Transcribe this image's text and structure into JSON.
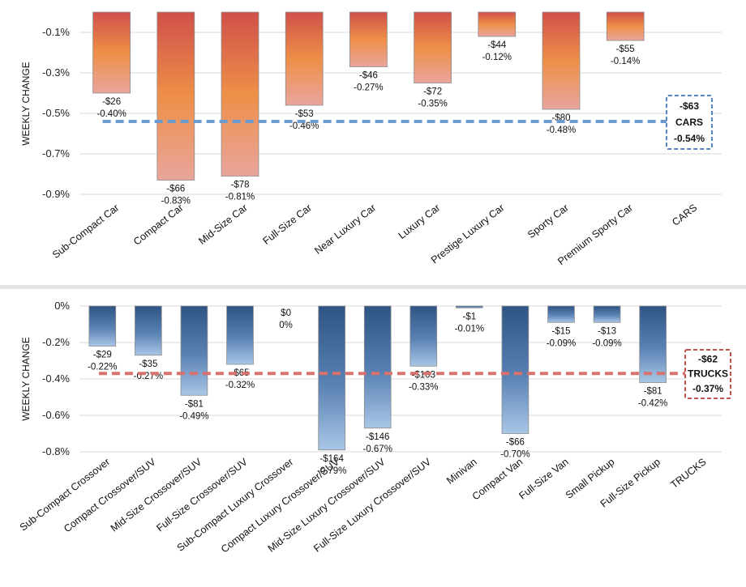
{
  "chart_data": [
    {
      "type": "bar",
      "ylabel": "WEEKLY CHANGE",
      "ylim": [
        -0.009,
        0.0
      ],
      "yticks": [
        "-0.1%",
        "-0.3%",
        "-0.5%",
        "-0.7%",
        "-0.9%"
      ],
      "ytick_values": [
        -0.001,
        -0.003,
        -0.005,
        -0.007,
        -0.009
      ],
      "categories": [
        "Sub-Compact Car",
        "Compact Car",
        "Mid-Size Car",
        "Full-Size Car",
        "Near Luxury Car",
        "Luxury Car",
        "Prestige Luxury Car",
        "Sporty Car",
        "Premium Sporty Car",
        "CARS"
      ],
      "values": [
        -0.004,
        -0.0083,
        -0.0081,
        -0.0046,
        -0.0027,
        -0.0035,
        -0.0012,
        -0.0048,
        -0.0014,
        null
      ],
      "dollar_labels": [
        "-$26",
        "-$66",
        "-$78",
        "-$53",
        "-$46",
        "-$72",
        "-$44",
        "-$80",
        "-$55",
        ""
      ],
      "pct_labels": [
        "-0.40%",
        "-0.83%",
        "-0.81%",
        "-0.46%",
        "-0.27%",
        "-0.35%",
        "-0.12%",
        "-0.48%",
        "-0.14%",
        ""
      ],
      "average": {
        "value": -0.0054,
        "dollar": "-$63",
        "name": "CARS",
        "pct": "-0.54%"
      },
      "bar_colors": {
        "top": "#D0504A",
        "mid": "#EE8F48",
        "bottom": "#E9A59C"
      },
      "average_line_color": "#6C9BD2",
      "grid": true
    },
    {
      "type": "bar",
      "ylabel": "WEEKLY CHANGE",
      "ylim": [
        -0.008,
        0.0
      ],
      "yticks": [
        "0%",
        "-0.2%",
        "-0.4%",
        "-0.6%",
        "-0.8%"
      ],
      "ytick_values": [
        0.0,
        -0.002,
        -0.004,
        -0.006,
        -0.008
      ],
      "categories": [
        "Sub-Compact Crossover",
        "Compact Crossover/SUV",
        "Mid-Size Crossover/SUV",
        "Full-Size Crossover/SUV",
        "Sub-Compact Luxury Crossover",
        "Compact Luxury Crossover/SUV",
        "Mid-Size Luxury Crossover/SUV",
        "Full-Size Luxury Crossover/SUV",
        "Minivan",
        "Compact Van",
        "Full-Size Van",
        "Small Pickup",
        "Full-Size Pickup",
        "TRUCKS"
      ],
      "values": [
        -0.0022,
        -0.0027,
        -0.0049,
        -0.0032,
        0.0,
        -0.0079,
        -0.0067,
        -0.0033,
        -0.0001,
        -0.007,
        -0.0009,
        -0.0009,
        -0.0042,
        null
      ],
      "dollar_labels": [
        "-$29",
        "-$35",
        "-$81",
        "-$65",
        "$0",
        "-$164",
        "-$146",
        "-$103",
        "-$1",
        "-$66",
        "-$15",
        "-$13",
        "-$81",
        ""
      ],
      "pct_labels": [
        "-0.22%",
        "-0.27%",
        "-0.49%",
        "-0.32%",
        "0%",
        "-0.79%",
        "-0.67%",
        "-0.33%",
        "-0.01%",
        "-0.70%",
        "-0.09%",
        "-0.09%",
        "-0.42%",
        ""
      ],
      "average": {
        "value": -0.0037,
        "dollar": "-$62",
        "name": "TRUCKS",
        "pct": "-0.37%"
      },
      "bar_colors": {
        "top": "#2E5485",
        "mid": "#4E76A8",
        "bottom": "#9DBDE0"
      },
      "average_line_color": "#D9716E",
      "grid": true
    }
  ]
}
